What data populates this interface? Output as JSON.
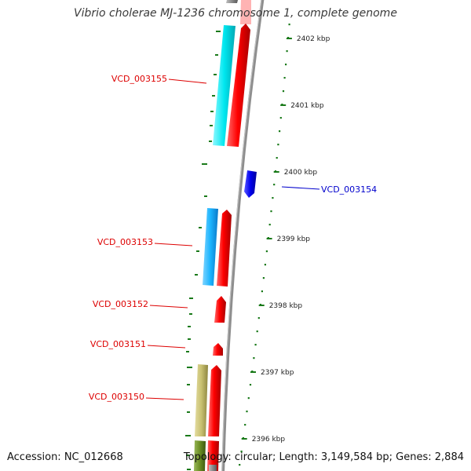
{
  "title": "Vibrio cholerae MJ-1236 chromosome 1, complete genome",
  "accession_text": "Accession: NC_012668",
  "topology_text": "Topology: circular; Length: 3,149,584 bp; Genes: 2,884",
  "colors": {
    "forward_strand": "#ff1a1a",
    "reverse_strand": "#0000ee",
    "backbone": "#8a8a8a",
    "tick": "#1a7a1a",
    "label_red": "#dd0000",
    "label_blue": "#0000cc",
    "cyan_feature": "#00e8f0",
    "light_blue_feature": "#1ab4ff",
    "khaki_feature": "#c8c070",
    "olive_feature": "#6b8e23"
  },
  "scale": {
    "unit": "kbp",
    "labels": [
      "2402 kbp",
      "2401 kbp",
      "2400 kbp",
      "2399 kbp",
      "2398 kbp",
      "2397 kbp",
      "2396 kbp"
    ]
  },
  "genes": [
    {
      "id": "VCD_003155",
      "strand": "forward"
    },
    {
      "id": "VCD_003154",
      "strand": "reverse"
    },
    {
      "id": "VCD_003153",
      "strand": "forward"
    },
    {
      "id": "VCD_003152",
      "strand": "forward"
    },
    {
      "id": "VCD_003151",
      "strand": "forward"
    },
    {
      "id": "VCD_003150",
      "strand": "forward"
    }
  ]
}
